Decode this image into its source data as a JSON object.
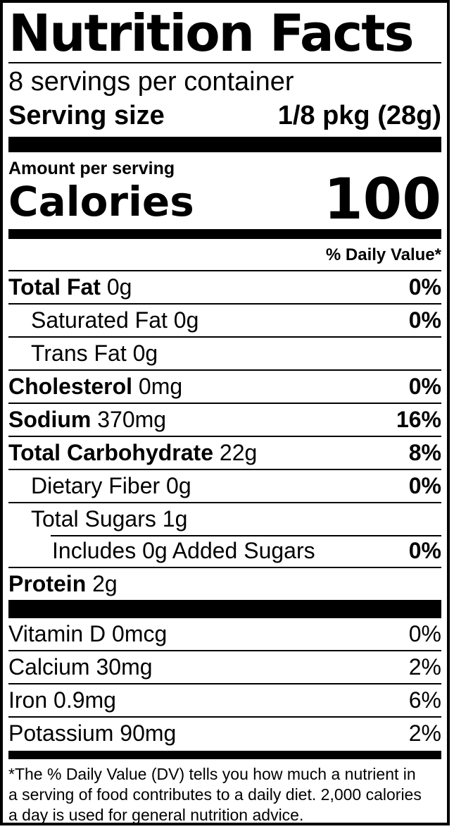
{
  "colors": {
    "ink": "#000000",
    "paper": "#ffffff"
  },
  "header": {
    "title": "Nutrition Facts",
    "servings_per_container": "8 servings per container",
    "serving_size_label": "Serving size",
    "serving_size_value": "1/8 pkg (28g)"
  },
  "calories": {
    "amount_per_serving_label": "Amount per serving",
    "label": "Calories",
    "value": "100"
  },
  "daily_value_header": "% Daily Value*",
  "nutrients": [
    {
      "name": "Total Fat",
      "amount": "0g",
      "dv": "0%",
      "bold": true,
      "indent": 0
    },
    {
      "name": "Saturated Fat",
      "amount": "0g",
      "dv": "0%",
      "bold": false,
      "indent": 1
    },
    {
      "name": "Trans Fat",
      "amount": "0g",
      "dv": "",
      "bold": false,
      "indent": 1
    },
    {
      "name": "Cholesterol",
      "amount": "0mg",
      "dv": "0%",
      "bold": true,
      "indent": 0
    },
    {
      "name": "Sodium",
      "amount": "370mg",
      "dv": "16%",
      "bold": true,
      "indent": 0
    },
    {
      "name": "Total Carbohydrate",
      "amount": "22g",
      "dv": "8%",
      "bold": true,
      "indent": 0
    },
    {
      "name": "Dietary Fiber",
      "amount": "0g",
      "dv": "0%",
      "bold": false,
      "indent": 1
    },
    {
      "name": "Total Sugars",
      "amount": "1g",
      "dv": "",
      "bold": false,
      "indent": 1
    },
    {
      "name": "Includes 0g Added Sugars",
      "amount": "",
      "dv": "0%",
      "bold": false,
      "indent": 2
    },
    {
      "name": "Protein",
      "amount": "2g",
      "dv": "",
      "bold": true,
      "indent": 0
    }
  ],
  "micronutrients": [
    {
      "name": "Vitamin D",
      "amount": "0mcg",
      "dv": "0%",
      "bold": false,
      "indent": 0
    },
    {
      "name": "Calcium",
      "amount": "30mg",
      "dv": "2%",
      "bold": false,
      "indent": 0
    },
    {
      "name": "Iron",
      "amount": "0.9mg",
      "dv": "6%",
      "bold": false,
      "indent": 0
    },
    {
      "name": "Potassium",
      "amount": "90mg",
      "dv": "2%",
      "bold": false,
      "indent": 0
    }
  ],
  "footnote_lines": [
    "*The % Daily Value (DV) tells you how much a nutrient in",
    "a serving of food contributes to a daily diet. 2,000 calories",
    "a day is used for general nutrition advice."
  ]
}
